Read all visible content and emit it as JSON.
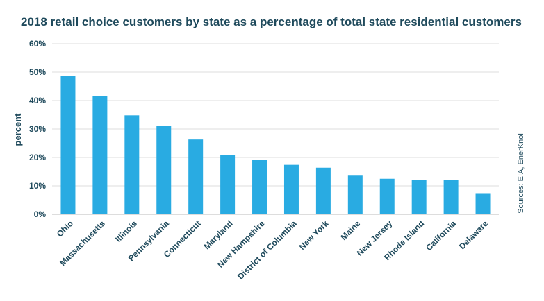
{
  "chart_data": {
    "type": "bar",
    "title": "2018 retail choice customers by state as a percentage of total state residential customers",
    "ylabel": "percent",
    "xlabel": "",
    "source": "Sources: EIA, EnerKnol",
    "ylim": [
      0,
      60
    ],
    "yticks": [
      "0%",
      "10%",
      "20%",
      "30%",
      "40%",
      "50%",
      "60%"
    ],
    "categories": [
      "Ohio",
      "Massachusetts",
      "Illinois",
      "Pennsylvania",
      "Connecticut",
      "Maryland",
      "New Hampshire",
      "District of Columbia",
      "New York",
      "Maine",
      "New Jersey",
      "Rhode Island",
      "California",
      "Delaware"
    ],
    "values": [
      48.7,
      41.5,
      34.8,
      31.2,
      26.3,
      20.8,
      19.1,
      17.4,
      16.4,
      13.6,
      12.5,
      12.1,
      12.1,
      7.2
    ],
    "bar_color": "#29abe2",
    "grid": true,
    "text_color": "#1f4a5c",
    "grid_color": "#dddddd"
  }
}
